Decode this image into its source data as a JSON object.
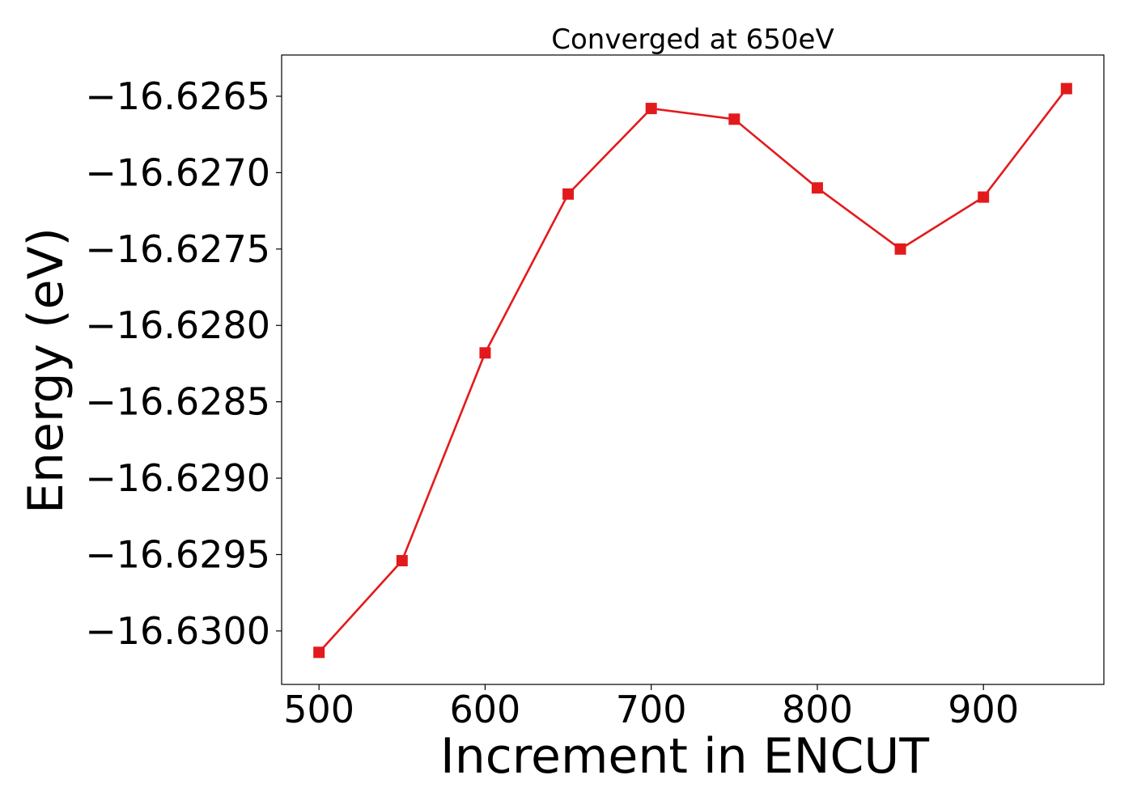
{
  "chart_data": {
    "type": "line",
    "title": "Converged at 650eV",
    "xlabel": "Increment in ENCUT",
    "ylabel": "Energy (eV)",
    "xlim": [
      477.5,
      972.5
    ],
    "ylim": [
      -16.63035,
      -16.62623
    ],
    "x_ticks": [
      500,
      600,
      700,
      800,
      900
    ],
    "x_tick_labels": [
      "500",
      "600",
      "700",
      "800",
      "900"
    ],
    "y_ticks": [
      -16.6265,
      -16.627,
      -16.6275,
      -16.628,
      -16.6285,
      -16.629,
      -16.6295,
      -16.63
    ],
    "y_tick_labels": [
      "−16.6265",
      "−16.6270",
      "−16.6275",
      "−16.6280",
      "−16.6285",
      "−16.6290",
      "−16.6295",
      "−16.6300"
    ],
    "grid": false,
    "series": [
      {
        "color": "#e31a1c",
        "marker": "square",
        "x": [
          500,
          550,
          600,
          650,
          700,
          750,
          800,
          850,
          900,
          950
        ],
        "y": [
          -16.63014,
          -16.62954,
          -16.62818,
          -16.62714,
          -16.62658,
          -16.62665,
          -16.6271,
          -16.6275,
          -16.62716,
          -16.62645
        ]
      }
    ]
  }
}
